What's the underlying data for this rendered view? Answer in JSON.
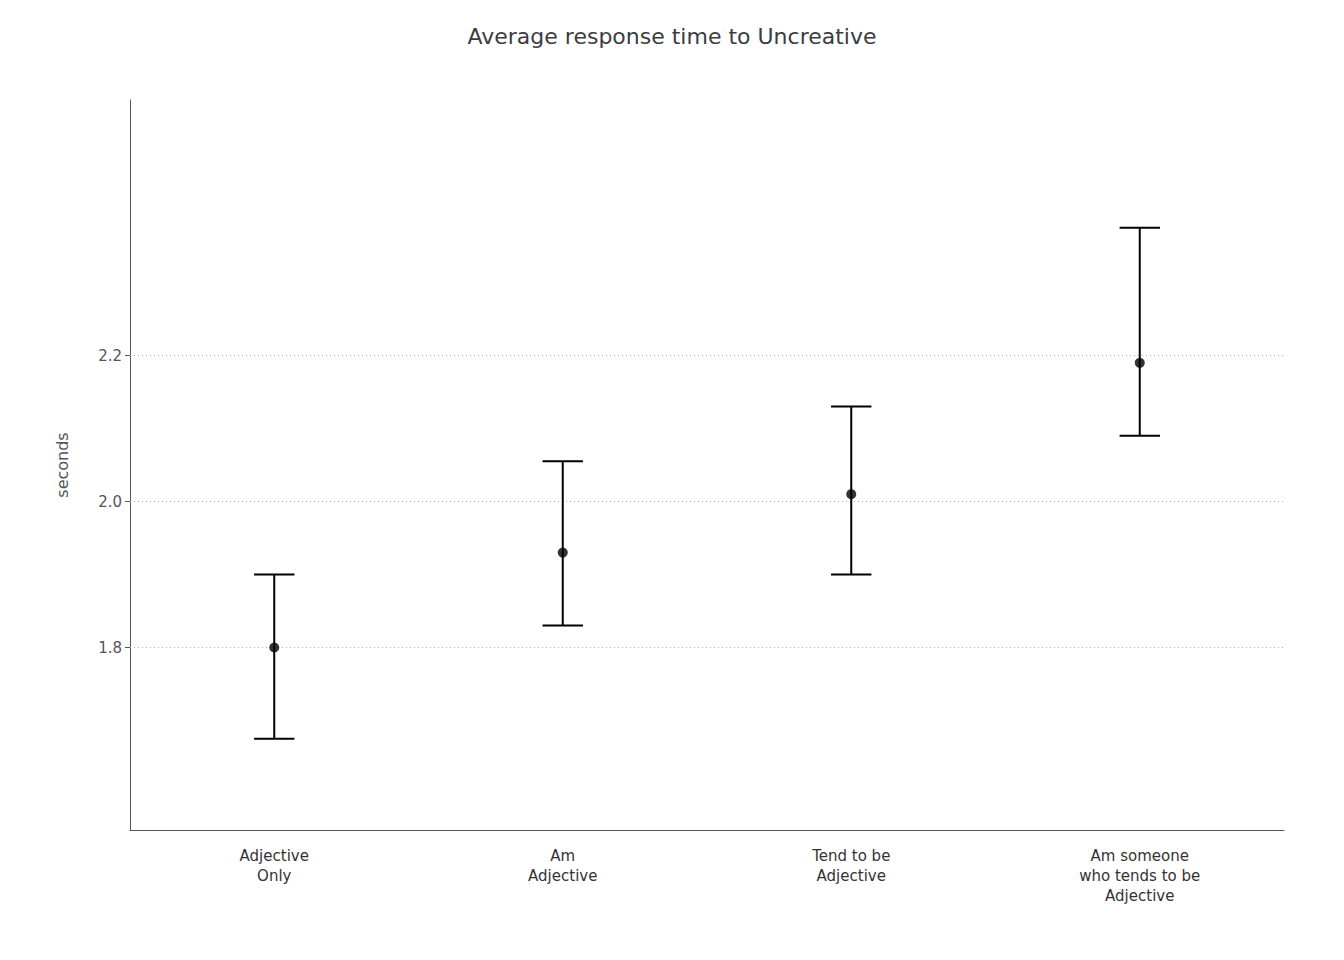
{
  "chart_data": {
    "type": "errorbar",
    "title": "Average response time to Uncreative",
    "ylabel": "seconds",
    "categories": [
      "Adjective\nOnly",
      "Am\nAdjective",
      "Tend to be\nAdjective",
      "Am someone\nwho tends to be\nAdjective"
    ],
    "values": [
      1.8,
      1.93,
      2.01,
      2.19
    ],
    "lower": [
      1.675,
      1.83,
      1.9,
      2.09
    ],
    "upper": [
      1.9,
      2.055,
      2.13,
      2.375
    ],
    "color": "#000000",
    "ylim": [
      1.55,
      2.55
    ],
    "yticks": [
      1.8,
      {
        "value": 2.0,
        "label": "2.0"
      },
      2.2
    ],
    "grid": true
  }
}
